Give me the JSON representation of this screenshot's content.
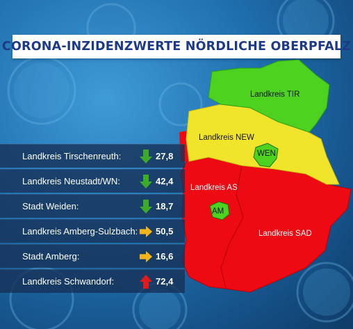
{
  "title": "CORONA-INZIDENZWERTE NÖRDLICHE OBERPFALZ",
  "map": {
    "regions": [
      {
        "id": "tir",
        "label": "Landkreis TIR",
        "color": "#4cd21f"
      },
      {
        "id": "new",
        "label": "Landkreis NEW",
        "color": "#f1e52b"
      },
      {
        "id": "as",
        "label": "Landkreis AS",
        "color": "#ee0a12"
      },
      {
        "id": "sad",
        "label": "Landkreis SAD",
        "color": "#ee0a12"
      },
      {
        "id": "wen",
        "label": "WEN",
        "color": "#4cd21f"
      },
      {
        "id": "am",
        "label": "AM",
        "color": "#4cd21f"
      }
    ]
  },
  "rows": [
    {
      "label": "Landkreis Tirschenreuth:",
      "value": "27,8",
      "trend": "down",
      "icon": "arrow-down-icon",
      "color": "#3dab2a"
    },
    {
      "label": "Landkreis Neustadt/WN:",
      "value": "42,4",
      "trend": "down",
      "icon": "arrow-down-icon",
      "color": "#3dab2a"
    },
    {
      "label": "Stadt Weiden:",
      "value": "18,7",
      "trend": "down",
      "icon": "arrow-down-icon",
      "color": "#3dab2a"
    },
    {
      "label": "Landkreis Amberg-Sulzbach:",
      "value": "50,5",
      "trend": "right",
      "icon": "arrow-right-icon",
      "color": "#f2b51c"
    },
    {
      "label": "Stadt Amberg:",
      "value": "16,6",
      "trend": "right",
      "icon": "arrow-right-icon",
      "color": "#f2b51c"
    },
    {
      "label": "Landkreis Schwandorf:",
      "value": "72,4",
      "trend": "up",
      "icon": "arrow-up-icon",
      "color": "#e41a1a"
    }
  ]
}
